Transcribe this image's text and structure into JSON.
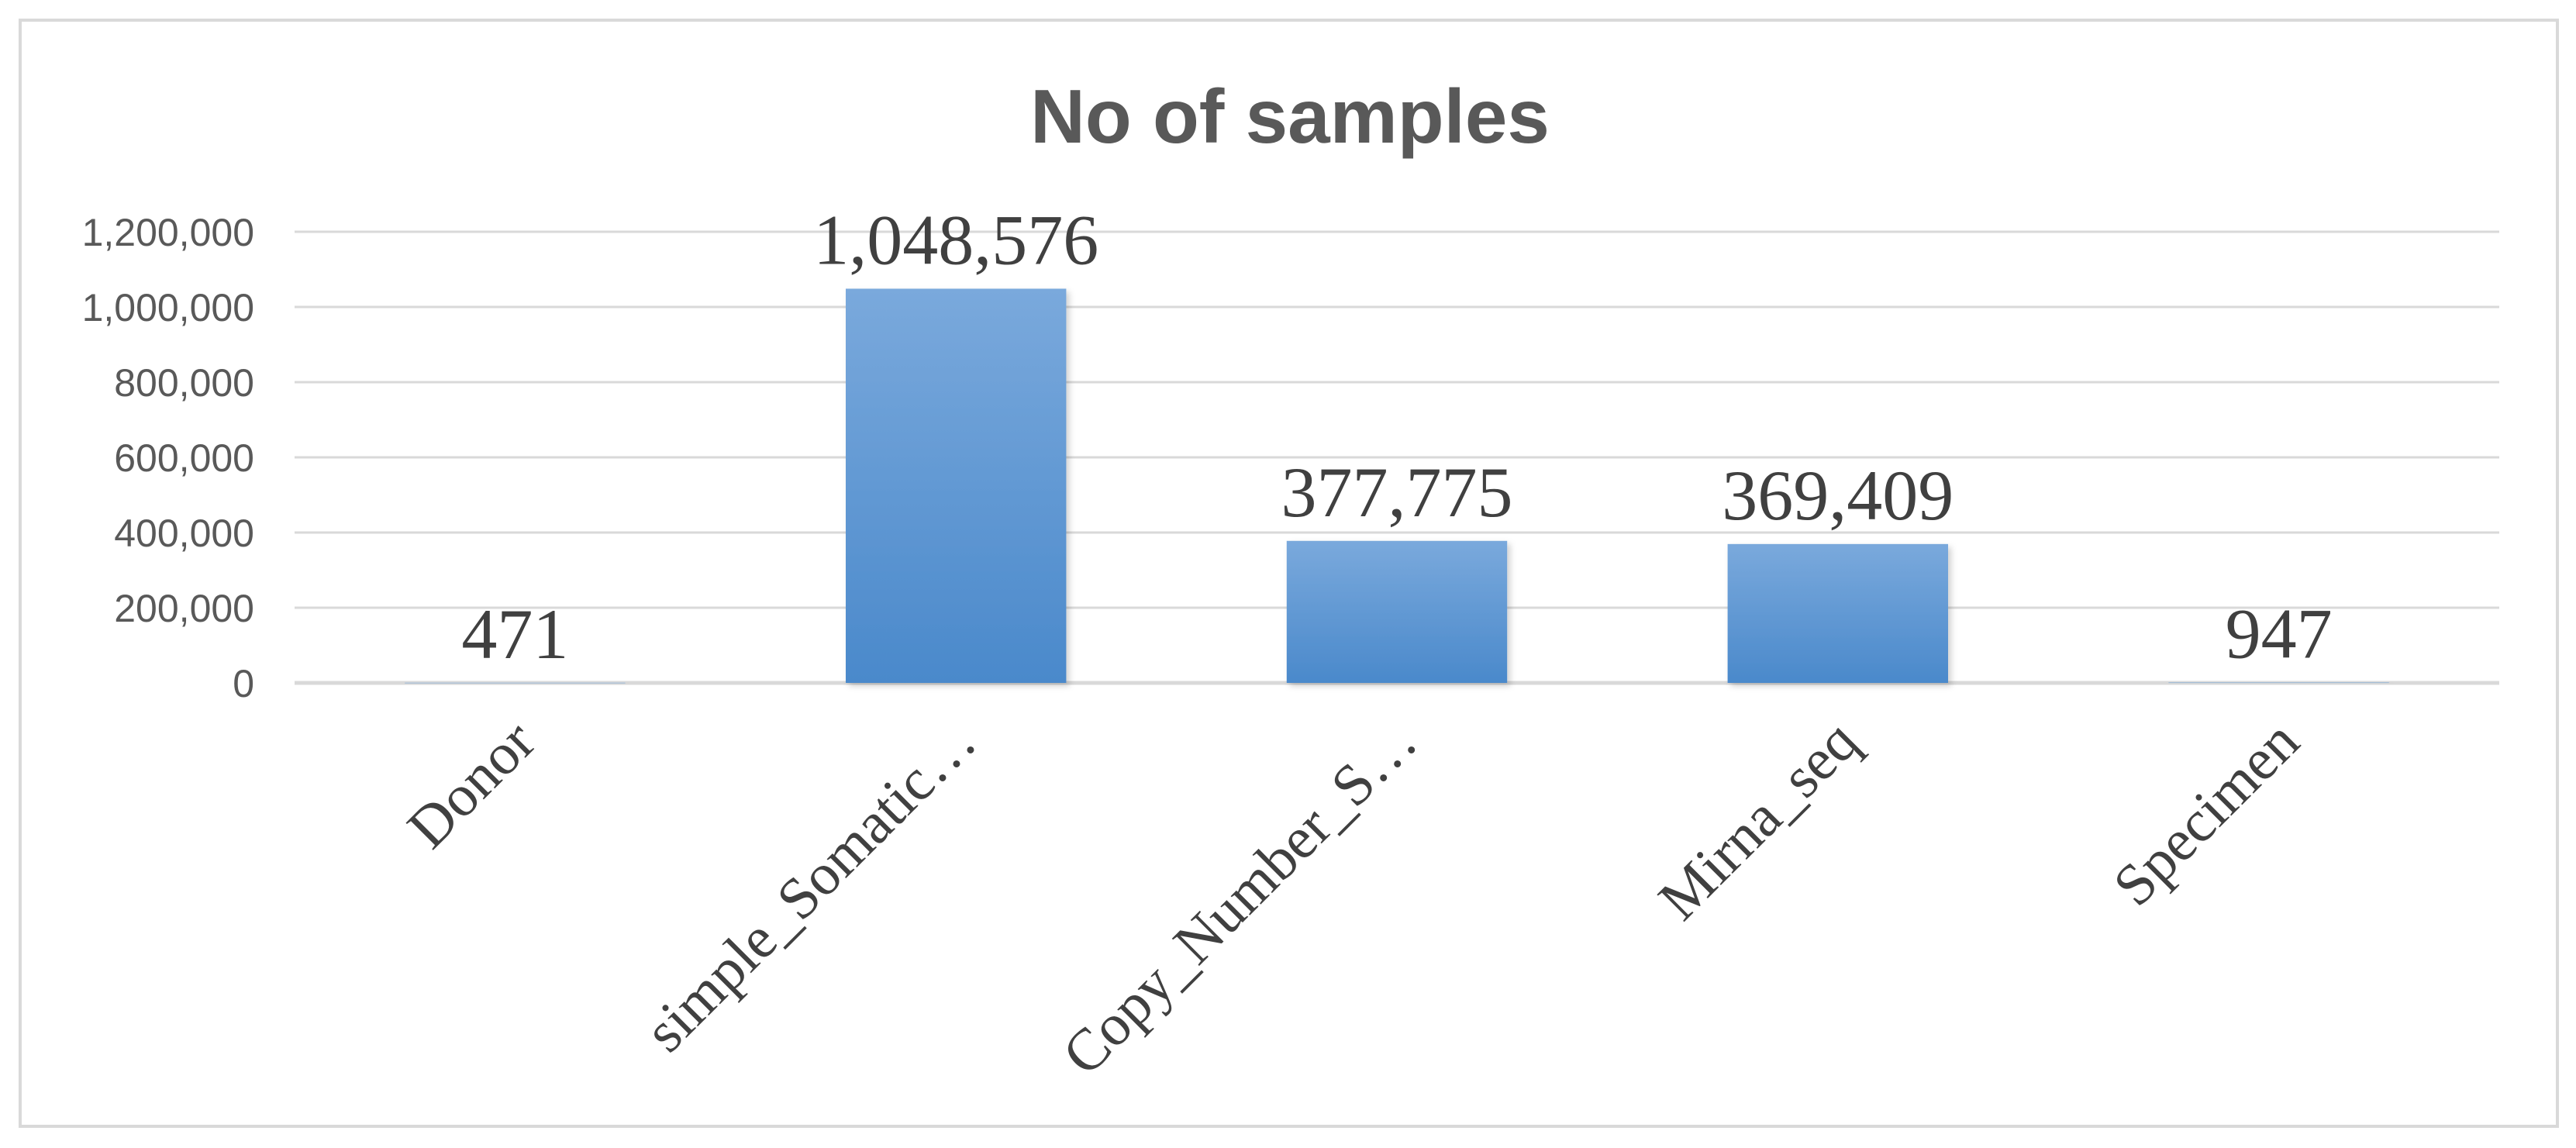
{
  "chart_data": {
    "type": "bar",
    "title": "No of samples",
    "xlabel": "",
    "ylabel": "",
    "categories": [
      "Donor",
      "simple_Somatic…",
      "Copy_Number_S…",
      "Mirna_seq",
      "Specimen"
    ],
    "values": [
      471,
      1048576,
      377775,
      369409,
      947
    ],
    "data_labels": [
      "471",
      "1,048,576",
      "377,775",
      "369,409",
      "947"
    ],
    "ylim": [
      0,
      1200000
    ],
    "yticks": [
      0,
      200000,
      400000,
      600000,
      800000,
      1000000,
      1200000
    ],
    "ytick_labels": [
      "0",
      "200,000",
      "400,000",
      "600,000",
      "800,000",
      "1,000,000",
      "1,200,000"
    ],
    "grid": true,
    "legend": "none",
    "colors": {
      "bar_top": "#7aa9dc",
      "bar_bottom": "#4a89cb",
      "gridline": "#d9d9d9",
      "axis_text": "#595959",
      "label_text": "#404040",
      "border": "#d9d9d9"
    }
  }
}
